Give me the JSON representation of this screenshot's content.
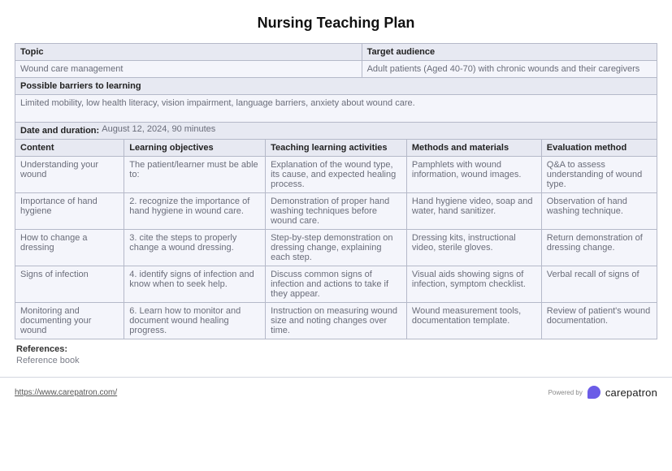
{
  "title": "Nursing Teaching Plan",
  "top": {
    "topic_label": "Topic",
    "audience_label": "Target audience",
    "topic": "Wound care management",
    "audience": "Adult patients (Aged 40-70) with chronic wounds and their caregivers",
    "barriers_label": "Possible barriers to learning",
    "barriers": "Limited mobility, low health literacy, vision impairment, language barriers, anxiety about wound care.",
    "date_label": "Date and duration:",
    "date_value": "August 12, 2024, 90 minutes"
  },
  "cols": {
    "c1": "Content",
    "c2": "Learning objectives",
    "c3": "Teaching learning activities",
    "c4": "Methods and materials",
    "c5": "Evaluation method"
  },
  "rows": [
    {
      "c1": "Understanding your wound",
      "c2": "The patient/learner must be able to:",
      "c3": "Explanation of the wound type, its cause, and expected healing process.",
      "c4": "Pamphlets with wound information, wound images.",
      "c5": "Q&A to assess understanding of wound type."
    },
    {
      "c1": "Importance of hand hygiene",
      "c2": "2. recognize the importance of hand hygiene in wound care.",
      "c3": "Demonstration of proper hand washing techniques before wound care.",
      "c4": "Hand hygiene video, soap and water, hand sanitizer.",
      "c5": "Observation of hand washing technique."
    },
    {
      "c1": "How to change a dressing",
      "c2": "3. cite the steps to properly change a wound dressing.",
      "c3": "Step-by-step demonstration on dressing change, explaining each step.",
      "c4": "Dressing kits, instructional video, sterile gloves.",
      "c5": "Return demonstration of dressing change."
    },
    {
      "c1": "Signs of infection",
      "c2": "4. identify signs of infection and know when to seek help.",
      "c3": "Discuss common signs of infection and actions to take if they appear.",
      "c4": "Visual aids showing signs of infection, symptom checklist.",
      "c5": "Verbal recall of signs of"
    },
    {
      "c1": "Monitoring and documenting your wound",
      "c2": "6. Learn how to monitor and document wound healing progress.",
      "c3": "Instruction on measuring wound size and noting changes over time.",
      "c4": "Wound measurement tools, documentation template.",
      "c5": "Review of patient's wound documentation."
    }
  ],
  "refs": {
    "label": "References:",
    "value": "Reference book"
  },
  "footer": {
    "url": "https://www.carepatron.com/",
    "powered": "Powered by",
    "brand": "carepatron"
  }
}
